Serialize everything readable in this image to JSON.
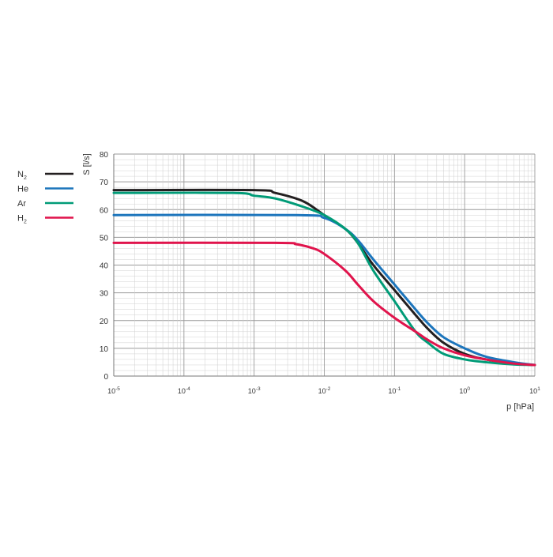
{
  "chart_data": {
    "type": "line",
    "xlabel": "p [hPa]",
    "ylabel": "S [l/s]",
    "x_scale": "log",
    "xlim": [
      1e-05,
      10
    ],
    "ylim": [
      0,
      80
    ],
    "grid": true,
    "legend_position": "left",
    "x_ticks": [
      {
        "value": 1e-05,
        "base": "10",
        "exp": "-5"
      },
      {
        "value": 0.0001,
        "base": "10",
        "exp": "-4"
      },
      {
        "value": 0.001,
        "base": "10",
        "exp": "-3"
      },
      {
        "value": 0.01,
        "base": "10",
        "exp": "-2"
      },
      {
        "value": 0.1,
        "base": "10",
        "exp": "-1"
      },
      {
        "value": 1,
        "base": "10",
        "exp": "0"
      },
      {
        "value": 10,
        "base": "10",
        "exp": "1"
      }
    ],
    "y_ticks": [
      "0",
      "10",
      "20",
      "30",
      "40",
      "50",
      "60",
      "70",
      "80"
    ],
    "series": [
      {
        "name": "N",
        "subscript": "2",
        "color": "#231f20",
        "points": [
          [
            1e-05,
            67
          ],
          [
            0.001,
            67
          ],
          [
            0.002,
            66
          ],
          [
            0.005,
            63
          ],
          [
            0.01,
            58
          ],
          [
            0.02,
            53
          ],
          [
            0.03,
            48
          ],
          [
            0.05,
            40
          ],
          [
            0.1,
            31
          ],
          [
            0.2,
            22
          ],
          [
            0.3,
            17
          ],
          [
            0.5,
            12
          ],
          [
            1,
            8
          ],
          [
            2,
            6
          ],
          [
            5,
            4.5
          ],
          [
            10,
            4
          ]
        ]
      },
      {
        "name": "He",
        "subscript": "",
        "color": "#1c75bc",
        "points": [
          [
            1e-05,
            58
          ],
          [
            0.004,
            58
          ],
          [
            0.01,
            57
          ],
          [
            0.02,
            53
          ],
          [
            0.03,
            49
          ],
          [
            0.05,
            42
          ],
          [
            0.1,
            33
          ],
          [
            0.2,
            24
          ],
          [
            0.3,
            19
          ],
          [
            0.5,
            14
          ],
          [
            1,
            10
          ],
          [
            2,
            7
          ],
          [
            5,
            5
          ],
          [
            10,
            4
          ]
        ]
      },
      {
        "name": "Ar",
        "subscript": "",
        "color": "#009b77",
        "points": [
          [
            1e-05,
            66
          ],
          [
            0.0005,
            66
          ],
          [
            0.001,
            65
          ],
          [
            0.002,
            64
          ],
          [
            0.005,
            61
          ],
          [
            0.01,
            58
          ],
          [
            0.02,
            53
          ],
          [
            0.03,
            48
          ],
          [
            0.05,
            38
          ],
          [
            0.1,
            27
          ],
          [
            0.2,
            16
          ],
          [
            0.3,
            12
          ],
          [
            0.5,
            8
          ],
          [
            1,
            6
          ],
          [
            2,
            5
          ],
          [
            5,
            4.2
          ],
          [
            10,
            4
          ]
        ]
      },
      {
        "name": "H",
        "subscript": "2",
        "color": "#e0144c",
        "points": [
          [
            1e-05,
            48
          ],
          [
            0.002,
            48
          ],
          [
            0.004,
            47.5
          ],
          [
            0.007,
            46
          ],
          [
            0.01,
            44
          ],
          [
            0.02,
            38
          ],
          [
            0.03,
            33
          ],
          [
            0.05,
            27
          ],
          [
            0.1,
            21
          ],
          [
            0.2,
            16
          ],
          [
            0.3,
            13
          ],
          [
            0.5,
            10
          ],
          [
            1,
            7.5
          ],
          [
            2,
            6
          ],
          [
            5,
            4.5
          ],
          [
            10,
            4
          ]
        ]
      }
    ]
  }
}
